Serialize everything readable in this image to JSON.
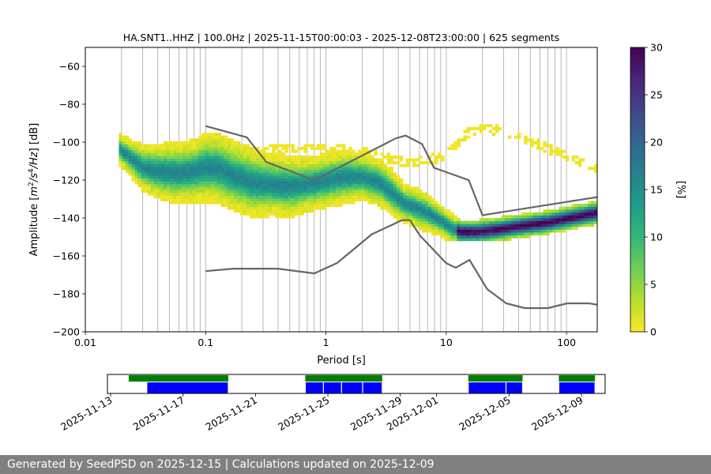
{
  "chart_data": [
    {
      "type": "heatmap",
      "title": "HA.SNT1..HHZ | 100.0Hz | 2025-11-15T00:00:03 - 2025-12-08T23:00:00 | 625 segments",
      "xlabel": "Period [s]",
      "ylabel_parts": [
        "Amplitude [",
        "m",
        "2",
        "/",
        "s",
        "4",
        "/",
        "Hz",
        "] [dB]"
      ],
      "x_scale": "log",
      "xlim": [
        0.01,
        180
      ],
      "ylim": [
        -200,
        -50
      ],
      "x_ticks": [
        {
          "value": 0.01,
          "label": "0.01"
        },
        {
          "value": 0.1,
          "label": "0.1"
        },
        {
          "value": 1,
          "label": "1"
        },
        {
          "value": 10,
          "label": "10"
        },
        {
          "value": 100,
          "label": "100"
        }
      ],
      "y_ticks": [
        {
          "value": -60,
          "label": "−60"
        },
        {
          "value": -80,
          "label": "−80"
        },
        {
          "value": -100,
          "label": "−100"
        },
        {
          "value": -120,
          "label": "−120"
        },
        {
          "value": -140,
          "label": "−140"
        },
        {
          "value": -160,
          "label": "−160"
        },
        {
          "value": -180,
          "label": "−180"
        },
        {
          "value": -200,
          "label": "−200"
        }
      ],
      "grid": "vertical lines at period bins",
      "vgrid_periods": [
        0.02,
        0.03,
        0.04,
        0.05,
        0.06,
        0.07,
        0.08,
        0.09,
        0.1,
        0.2,
        0.3,
        0.4,
        0.5,
        0.6,
        0.7,
        0.8,
        0.9,
        1,
        2,
        3,
        4,
        5,
        6,
        7,
        8,
        9,
        10,
        20,
        30,
        40,
        50,
        60,
        70,
        80,
        90,
        100,
        200
      ],
      "colorbar": {
        "label": "[%]",
        "range": [
          0,
          30
        ],
        "ticks": [
          {
            "value": 0,
            "label": "0"
          },
          {
            "value": 5,
            "label": "5"
          },
          {
            "value": 10,
            "label": "10"
          },
          {
            "value": 15,
            "label": "15"
          },
          {
            "value": 20,
            "label": "20"
          },
          {
            "value": 25,
            "label": "25"
          },
          {
            "value": 30,
            "label": "30"
          }
        ],
        "colors": [
          "#fde725",
          "#b5de2b",
          "#6ece58",
          "#35b779",
          "#1f9e89",
          "#26828e",
          "#31688e",
          "#3e4989",
          "#482878",
          "#440154"
        ]
      },
      "model_lines_color": "#666666",
      "nhnm": {
        "period": [
          0.1,
          0.22,
          0.32,
          0.8,
          3.8,
          4.6,
          6.3,
          7.9,
          15.4,
          20,
          354
        ],
        "db": [
          -91.5,
          -97.4,
          -110.5,
          -120,
          -98,
          -96.5,
          -101,
          -113.5,
          -120,
          -138.5,
          -126
        ]
      },
      "nlnm": {
        "period": [
          0.1,
          0.17,
          0.4,
          0.8,
          1.24,
          2.4,
          4.3,
          5,
          6,
          10,
          12,
          15.6,
          21.9,
          31.6,
          45,
          70,
          101,
          154,
          180
        ],
        "db": [
          -168,
          -166.7,
          -166.7,
          -169.2,
          -163.7,
          -148.6,
          -141.1,
          -141.1,
          -149,
          -163.8,
          -166.2,
          -162.1,
          -177.5,
          -185,
          -187.5,
          -187.5,
          -185,
          -185,
          -185.7
        ]
      },
      "psd_mode": {
        "period": [
          0.019,
          0.025,
          0.03,
          0.04,
          0.06,
          0.08,
          0.1,
          0.13,
          0.18,
          0.25,
          0.35,
          0.5,
          0.7,
          1.0,
          1.4,
          2.0,
          2.8,
          3.5,
          4.5,
          5.5,
          7,
          9,
          11,
          13,
          18,
          25,
          40,
          70,
          120,
          180
        ],
        "db": [
          -104,
          -110,
          -114,
          -116,
          -117,
          -116,
          -114,
          -115,
          -119,
          -122,
          -123,
          -124,
          -123,
          -121,
          -119,
          -119,
          -122,
          -127,
          -133,
          -135,
          -138,
          -142,
          -146,
          -148,
          -148,
          -147,
          -145,
          -143,
          -140,
          -138
        ],
        "spread_db": [
          4,
          5,
          6,
          7,
          8,
          8,
          9,
          9,
          9,
          9,
          8,
          8,
          7,
          7,
          7,
          6,
          6,
          6,
          5,
          5,
          5,
          4,
          4,
          3,
          3,
          3,
          3,
          3,
          3,
          3
        ]
      },
      "psd_sparse_upper": {
        "period": [
          0.3,
          0.6,
          1.0,
          2.0,
          5,
          10,
          15,
          20,
          30,
          50,
          100,
          180
        ],
        "db": [
          -105,
          -104,
          -104,
          -106,
          -112,
          -108,
          -96,
          -93,
          -95,
          -100,
          -108,
          -115
        ]
      }
    },
    {
      "type": "timeline",
      "x_ticks": [
        "2025-11-13",
        "2025-11-17",
        "2025-11-21",
        "2025-11-25",
        "2025-11-29",
        "2025-12-01",
        "2025-12-05",
        "2025-12-09"
      ],
      "green_color": "#008000",
      "blue_color": "#0000ff",
      "green_ranges": [
        [
          "2025-11-14T00",
          "2025-11-19T12"
        ],
        [
          "2025-11-23T18",
          "2025-11-26T22"
        ],
        [
          "2025-11-26T22",
          "2025-11-28T00"
        ],
        [
          "2025-12-02T18",
          "2025-12-05T18"
        ],
        [
          "2025-12-07T18",
          "2025-12-09T18"
        ]
      ],
      "blue_ranges": [
        [
          "2025-11-15T00",
          "2025-11-19T12"
        ],
        [
          "2025-11-23T18",
          "2025-11-24T18"
        ],
        [
          "2025-11-24T18",
          "2025-11-25T18"
        ],
        [
          "2025-11-25T18",
          "2025-11-26T22"
        ],
        [
          "2025-11-26T22",
          "2025-11-28T00"
        ],
        [
          "2025-12-02T18",
          "2025-12-04T20"
        ],
        [
          "2025-12-04T20",
          "2025-12-05T18"
        ],
        [
          "2025-12-07T18",
          "2025-12-09T18"
        ]
      ]
    }
  ],
  "footer": {
    "text": "Generated by SeedPSD on 2025-12-15 | Calculations updated on 2025-12-09"
  }
}
